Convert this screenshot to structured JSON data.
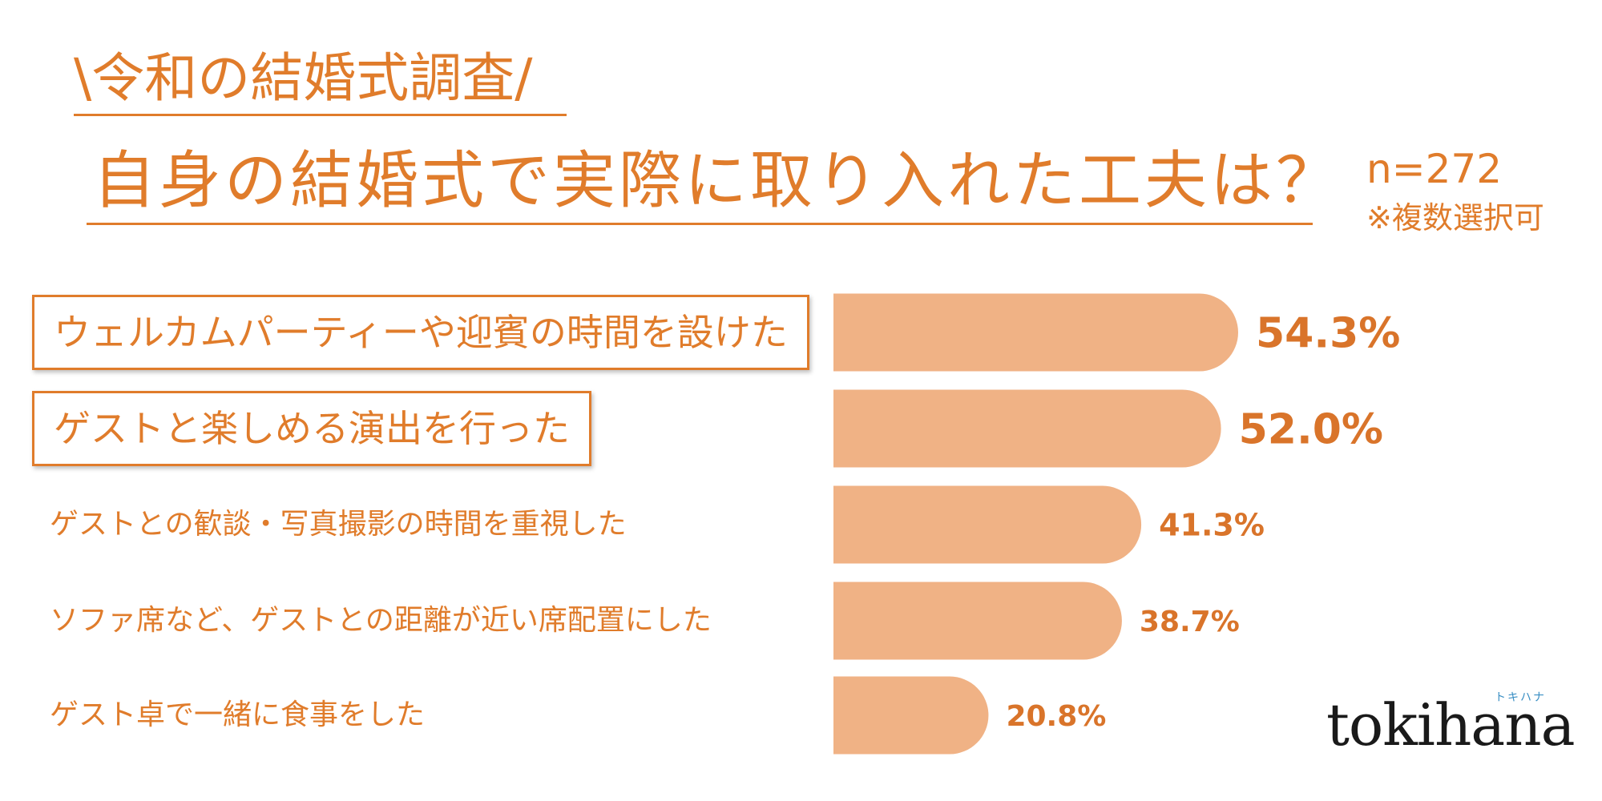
{
  "header": {
    "subtitle": "\\令和の結婚式調査/",
    "title": "自身の結婚式で実際に取り入れた工夫は？",
    "sample_size": "n=272",
    "note": "※複数選択可"
  },
  "logo": {
    "text": "tokihana",
    "kana": "トキハナ"
  },
  "colors": {
    "accent": "#e07c2b",
    "bar": "#f0b285",
    "label": "#d9742a"
  },
  "chart_data": {
    "type": "bar",
    "orientation": "horizontal",
    "categories": [
      "ウェルカムパーティーや迎賓の時間を設けた",
      "ゲストと楽しめる演出を行った",
      "ゲストとの歓談・写真撮影の時間を重視した",
      "ソファ席など、ゲストとの距離が近い席配置にした",
      "ゲスト卓で一緒に食事をした"
    ],
    "values": [
      54.3,
      52.0,
      41.3,
      38.7,
      20.8
    ],
    "value_labels": [
      "54.3%",
      "52.0%",
      "41.3%",
      "38.7%",
      "20.8%"
    ],
    "highlighted": [
      true,
      true,
      false,
      false,
      false
    ],
    "xlim": [
      0,
      100
    ]
  }
}
